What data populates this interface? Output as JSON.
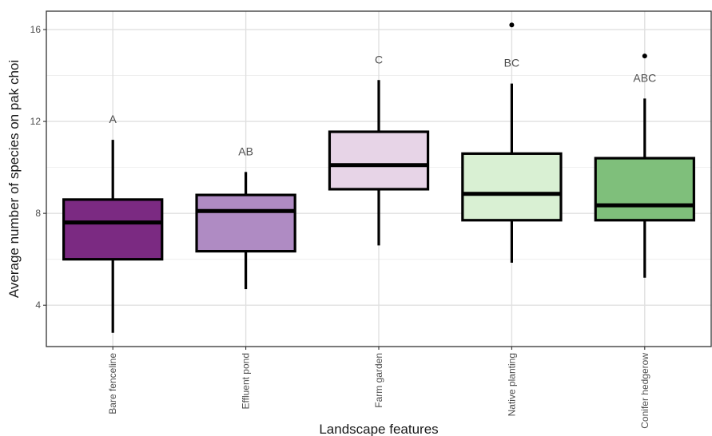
{
  "chart_data": {
    "type": "boxplot",
    "xlabel": "Landscape features",
    "ylabel": "Average number of species on pak choi",
    "ylim": [
      2.2,
      16.8
    ],
    "yticks": [
      4,
      8,
      12,
      16
    ],
    "grid": true,
    "categories": [
      "Bare fenceline",
      "Effluent pond",
      "Farm garden",
      "Native planting",
      "Conifer hedgerow"
    ],
    "boxes": [
      {
        "category": "Bare fenceline",
        "whisker_low": 2.8,
        "q1": 6.0,
        "median": 7.6,
        "q3": 8.6,
        "whisker_high": 11.2,
        "outliers": [],
        "letter": "A",
        "color": "#7b2a82"
      },
      {
        "category": "Effluent pond",
        "whisker_low": 4.7,
        "q1": 6.35,
        "median": 8.1,
        "q3": 8.8,
        "whisker_high": 9.8,
        "outliers": [],
        "letter": "AB",
        "color": "#af8bc3"
      },
      {
        "category": "Farm garden",
        "whisker_low": 6.6,
        "q1": 9.05,
        "median": 10.1,
        "q3": 11.55,
        "whisker_high": 13.8,
        "outliers": [],
        "letter": "C",
        "color": "#e7d4e7"
      },
      {
        "category": "Native planting",
        "whisker_low": 5.85,
        "q1": 7.7,
        "median": 8.85,
        "q3": 10.6,
        "whisker_high": 13.65,
        "outliers": [
          16.2
        ],
        "letter": "BC",
        "color": "#d9f0d3"
      },
      {
        "category": "Conifer hedgerow",
        "whisker_low": 5.2,
        "q1": 7.7,
        "median": 8.35,
        "q3": 10.4,
        "whisker_high": 13.0,
        "outliers": [
          14.85
        ],
        "letter": "ABC",
        "color": "#7fbf7b"
      }
    ]
  }
}
